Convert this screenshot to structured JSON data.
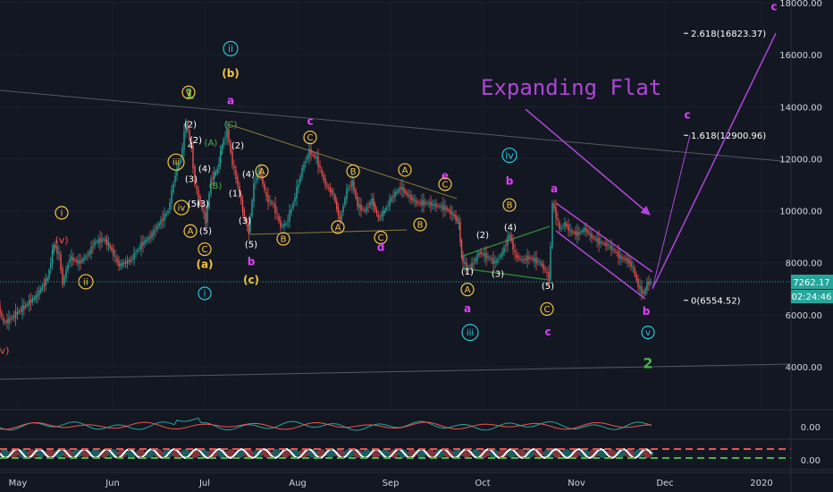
{
  "chart_data": {
    "type": "candlestick",
    "title": "",
    "annotation_title": "Expanding Flat",
    "y_axis": {
      "ticks": [
        "18000.00",
        "16000.00",
        "14000.00",
        "12000.00",
        "10000.00",
        "8000.00",
        "6000.00",
        "4000.00"
      ],
      "ylim": [
        2000,
        18000
      ],
      "current_price": "7262.17",
      "countdown": "02:24:46"
    },
    "x_axis": {
      "labels": [
        "May",
        "Jun",
        "Jul",
        "Aug",
        "Sep",
        "Oct",
        "Nov",
        "Dec",
        "2020"
      ]
    },
    "fib_labels": [
      "2.618(16823.37)",
      "1.618(12900.96)",
      "0(6554.52)"
    ],
    "fib_values": [
      16823.37,
      12900.96,
      6554.52
    ],
    "price_path": [
      [
        0,
        6300
      ],
      [
        6,
        5700
      ],
      [
        12,
        5800
      ],
      [
        25,
        6200
      ],
      [
        42,
        6700
      ],
      [
        55,
        7400
      ],
      [
        62,
        8700
      ],
      [
        68,
        8300
      ],
      [
        72,
        7200
      ],
      [
        80,
        8200
      ],
      [
        90,
        8000
      ],
      [
        100,
        8300
      ],
      [
        108,
        8800
      ],
      [
        118,
        8900
      ],
      [
        125,
        8600
      ],
      [
        135,
        7900
      ],
      [
        148,
        8100
      ],
      [
        160,
        8700
      ],
      [
        170,
        9000
      ],
      [
        180,
        9500
      ],
      [
        190,
        10000
      ],
      [
        198,
        11400
      ],
      [
        204,
        12000
      ],
      [
        210,
        13400
      ],
      [
        216,
        12400
      ],
      [
        220,
        11000
      ],
      [
        226,
        10300
      ],
      [
        232,
        9600
      ],
      [
        238,
        11200
      ],
      [
        245,
        11600
      ],
      [
        250,
        12500
      ],
      [
        256,
        13100
      ],
      [
        262,
        11800
      ],
      [
        268,
        11000
      ],
      [
        275,
        9700
      ],
      [
        280,
        9200
      ],
      [
        286,
        11000
      ],
      [
        292,
        11600
      ],
      [
        300,
        10500
      ],
      [
        308,
        10200
      ],
      [
        316,
        9400
      ],
      [
        322,
        9500
      ],
      [
        330,
        10300
      ],
      [
        340,
        11600
      ],
      [
        348,
        12300
      ],
      [
        356,
        12000
      ],
      [
        366,
        11000
      ],
      [
        375,
        10600
      ],
      [
        382,
        9600
      ],
      [
        390,
        10800
      ],
      [
        396,
        11100
      ],
      [
        402,
        10200
      ],
      [
        410,
        10000
      ],
      [
        418,
        10400
      ],
      [
        425,
        9700
      ],
      [
        432,
        10000
      ],
      [
        440,
        10500
      ],
      [
        450,
        10900
      ],
      [
        458,
        10600
      ],
      [
        468,
        10300
      ],
      [
        478,
        10300
      ],
      [
        490,
        10200
      ],
      [
        500,
        10100
      ],
      [
        510,
        9800
      ],
      [
        515,
        9500
      ],
      [
        518,
        8200
      ],
      [
        524,
        7800
      ],
      [
        530,
        7900
      ],
      [
        538,
        8400
      ],
      [
        548,
        8200
      ],
      [
        556,
        8000
      ],
      [
        564,
        8400
      ],
      [
        572,
        9100
      ],
      [
        578,
        8300
      ],
      [
        586,
        8100
      ],
      [
        594,
        8200
      ],
      [
        606,
        8000
      ],
      [
        612,
        7700
      ],
      [
        616,
        7400
      ],
      [
        618,
        8600
      ],
      [
        620,
        10300
      ],
      [
        624,
        9800
      ],
      [
        628,
        9300
      ],
      [
        634,
        9500
      ],
      [
        640,
        9200
      ],
      [
        648,
        9100
      ],
      [
        656,
        9300
      ],
      [
        664,
        9000
      ],
      [
        672,
        8800
      ],
      [
        680,
        8700
      ],
      [
        688,
        8500
      ],
      [
        696,
        8200
      ],
      [
        704,
        8100
      ],
      [
        710,
        7800
      ],
      [
        716,
        7100
      ],
      [
        722,
        6800
      ],
      [
        726,
        7200
      ],
      [
        730,
        7262.17
      ]
    ],
    "projection": {
      "to_1618": [
        [
          730,
          7000
        ],
        [
          772,
          12900.96
        ]
      ],
      "to_2618": [
        [
          730,
          7000
        ],
        [
          868,
          16823.37
        ]
      ]
    },
    "wave_labels": [
      {
        "x": 212,
        "y": 14300,
        "text": "1",
        "color": "#4caf50",
        "style": "plain",
        "size": 16
      },
      {
        "x": 258,
        "y": 16100,
        "text": "ii",
        "color": "#26c6da",
        "style": "circle",
        "size": 11
      },
      {
        "x": 258,
        "y": 15150,
        "text": "(b)",
        "color": "#f5c542",
        "style": "plain",
        "size": 12
      },
      {
        "x": 258,
        "y": 14100,
        "text": "a",
        "color": "#e040fb",
        "style": "plain",
        "size": 12
      },
      {
        "x": 211,
        "y": 14420,
        "text": "v",
        "color": "#f5c542",
        "style": "circle",
        "size": 11
      },
      {
        "x": 213,
        "y": 13200,
        "text": "(2)",
        "color": "#ffffff",
        "style": "plain",
        "size": 10
      },
      {
        "x": 258,
        "y": 13200,
        "text": "(C)",
        "color": "#4caf50",
        "style": "plain",
        "size": 10
      },
      {
        "x": 236,
        "y": 12500,
        "text": "(A)",
        "color": "#4caf50",
        "style": "plain",
        "size": 10
      },
      {
        "x": 266,
        "y": 12400,
        "text": "(2)",
        "color": "#ffffff",
        "style": "plain",
        "size": 10
      },
      {
        "x": 219,
        "y": 12600,
        "text": "(2)",
        "color": "#ffffff",
        "style": "plain",
        "size": 10
      },
      {
        "x": 213,
        "y": 12400,
        "text": "4",
        "color": "#ffffff",
        "style": "plain",
        "size": 10
      },
      {
        "x": 197,
        "y": 11750,
        "text": "iii",
        "color": "#f5c542",
        "style": "circle",
        "size": 10
      },
      {
        "x": 229,
        "y": 11500,
        "text": "(4)",
        "color": "#ffffff",
        "style": "plain",
        "size": 10
      },
      {
        "x": 278,
        "y": 11300,
        "text": "(4)",
        "color": "#ffffff",
        "style": "plain",
        "size": 10
      },
      {
        "x": 214,
        "y": 11100,
        "text": "(3)",
        "color": "#ffffff",
        "style": "plain",
        "size": 10
      },
      {
        "x": 241,
        "y": 10850,
        "text": "(B)",
        "color": "#4caf50",
        "style": "plain",
        "size": 10
      },
      {
        "x": 263,
        "y": 10550,
        "text": "(1)",
        "color": "#ffffff",
        "style": "plain",
        "size": 10
      },
      {
        "x": 217,
        "y": 10150,
        "text": "(5)",
        "color": "#ffffff",
        "style": "plain",
        "size": 10
      },
      {
        "x": 227,
        "y": 10150,
        "text": "(3)",
        "color": "#ffffff",
        "style": "plain",
        "size": 10
      },
      {
        "x": 203,
        "y": 10000,
        "text": "iv",
        "color": "#f5c542",
        "style": "circle",
        "size": 10
      },
      {
        "x": 274,
        "y": 9500,
        "text": "(3)",
        "color": "#ffffff",
        "style": "plain",
        "size": 10
      },
      {
        "x": 213,
        "y": 9100,
        "text": "A",
        "color": "#f5c542",
        "style": "circle",
        "size": 10
      },
      {
        "x": 230,
        "y": 9100,
        "text": "(5)",
        "color": "#ffffff",
        "style": "plain",
        "size": 10
      },
      {
        "x": 229,
        "y": 8400,
        "text": "C",
        "color": "#f5c542",
        "style": "circle",
        "size": 10
      },
      {
        "x": 229,
        "y": 7800,
        "text": "(a)",
        "color": "#f5c542",
        "style": "plain",
        "size": 12
      },
      {
        "x": 229,
        "y": 6700,
        "text": "i",
        "color": "#26c6da",
        "style": "circle",
        "size": 10
      },
      {
        "x": 281,
        "y": 8600,
        "text": "(5)",
        "color": "#ffffff",
        "style": "plain",
        "size": 10
      },
      {
        "x": 281,
        "y": 7900,
        "text": "b",
        "color": "#e040fb",
        "style": "plain",
        "size": 12
      },
      {
        "x": 281,
        "y": 7200,
        "text": "(c)",
        "color": "#f5c542",
        "style": "plain",
        "size": 12
      },
      {
        "x": 293,
        "y": 11400,
        "text": "A",
        "color": "#f5c542",
        "style": "circle",
        "size": 10
      },
      {
        "x": 317,
        "y": 8800,
        "text": "B",
        "color": "#f5c542",
        "style": "circle",
        "size": 10
      },
      {
        "x": 347,
        "y": 13300,
        "text": "c",
        "color": "#e040fb",
        "style": "plain",
        "size": 12
      },
      {
        "x": 347,
        "y": 12700,
        "text": "C",
        "color": "#f5c542",
        "style": "circle",
        "size": 10
      },
      {
        "x": 395,
        "y": 11400,
        "text": "B",
        "color": "#f5c542",
        "style": "circle",
        "size": 10
      },
      {
        "x": 378,
        "y": 9250,
        "text": "A",
        "color": "#f5c542",
        "style": "circle",
        "size": 10
      },
      {
        "x": 426,
        "y": 8850,
        "text": "C",
        "color": "#f5c542",
        "style": "circle",
        "size": 10
      },
      {
        "x": 426,
        "y": 8450,
        "text": "d",
        "color": "#e040fb",
        "style": "plain",
        "size": 12
      },
      {
        "x": 453,
        "y": 11450,
        "text": "A",
        "color": "#f5c542",
        "style": "circle",
        "size": 10
      },
      {
        "x": 470,
        "y": 9350,
        "text": "B",
        "color": "#f5c542",
        "style": "circle",
        "size": 10
      },
      {
        "x": 498,
        "y": 11200,
        "text": "e",
        "color": "#e040fb",
        "style": "plain",
        "size": 12
      },
      {
        "x": 498,
        "y": 10900,
        "text": "C",
        "color": "#f5c542",
        "style": "circle",
        "size": 10
      },
      {
        "x": 69,
        "y": 9800,
        "text": "i",
        "color": "#f5c542",
        "style": "circle",
        "size": 10
      },
      {
        "x": 69,
        "y": 8750,
        "text": "(v)",
        "color": "#ef5350",
        "style": "plain",
        "size": 11
      },
      {
        "x": 96,
        "y": 7150,
        "text": "ii",
        "color": "#f5c542",
        "style": "circle",
        "size": 10
      },
      {
        "x": 5,
        "y": 4500,
        "text": "v)",
        "color": "#ef5350",
        "style": "plain",
        "size": 11
      },
      {
        "x": 570,
        "y": 12000,
        "text": "iv",
        "color": "#26c6da",
        "style": "circle",
        "size": 11
      },
      {
        "x": 570,
        "y": 11000,
        "text": "b",
        "color": "#e040fb",
        "style": "plain",
        "size": 12
      },
      {
        "x": 570,
        "y": 10100,
        "text": "B",
        "color": "#f5c542",
        "style": "circle",
        "size": 10
      },
      {
        "x": 571,
        "y": 9250,
        "text": "(4)",
        "color": "#ffffff",
        "style": "plain",
        "size": 10
      },
      {
        "x": 540,
        "y": 8950,
        "text": "(2)",
        "color": "#ffffff",
        "style": "plain",
        "size": 10
      },
      {
        "x": 523,
        "y": 7550,
        "text": "(1)",
        "color": "#ffffff",
        "style": "plain",
        "size": 10
      },
      {
        "x": 557,
        "y": 7450,
        "text": "(3)",
        "color": "#ffffff",
        "style": "plain",
        "size": 10
      },
      {
        "x": 523,
        "y": 6850,
        "text": "A",
        "color": "#f5c542",
        "style": "circle",
        "size": 10
      },
      {
        "x": 523,
        "y": 6100,
        "text": "a",
        "color": "#e040fb",
        "style": "plain",
        "size": 12
      },
      {
        "x": 526,
        "y": 5200,
        "text": "iii",
        "color": "#26c6da",
        "style": "circle",
        "size": 10
      },
      {
        "x": 620,
        "y": 10700,
        "text": "a",
        "color": "#e040fb",
        "style": "plain",
        "size": 12
      },
      {
        "x": 613,
        "y": 7000,
        "text": "(5)",
        "color": "#ffffff",
        "style": "plain",
        "size": 10
      },
      {
        "x": 612,
        "y": 6100,
        "text": "C",
        "color": "#f5c542",
        "style": "circle",
        "size": 10
      },
      {
        "x": 613,
        "y": 5200,
        "text": "c",
        "color": "#e040fb",
        "style": "plain",
        "size": 12
      },
      {
        "x": 723,
        "y": 6000,
        "text": "b",
        "color": "#e040fb",
        "style": "plain",
        "size": 12
      },
      {
        "x": 725,
        "y": 5200,
        "text": "v",
        "color": "#26c6da",
        "style": "circle",
        "size": 10
      },
      {
        "x": 725,
        "y": 3950,
        "text": "2",
        "color": "#4caf50",
        "style": "plain",
        "size": 16
      },
      {
        "x": 769,
        "y": 13550,
        "text": "c",
        "color": "#e040fb",
        "style": "plain",
        "size": 12
      },
      {
        "x": 866,
        "y": 17700,
        "text": "c",
        "color": "#e040fb",
        "style": "plain",
        "size": 12
      }
    ],
    "indicators": {
      "oscillator_1_tick": "0.00",
      "oscillator_2_tick": "0.00"
    },
    "colors": {
      "background": "#131722",
      "up": "#26a69a",
      "down": "#ef5350",
      "annotation": "#b046d8",
      "price_line": "#26a69a",
      "axis_text": "#d1d4dc"
    }
  }
}
